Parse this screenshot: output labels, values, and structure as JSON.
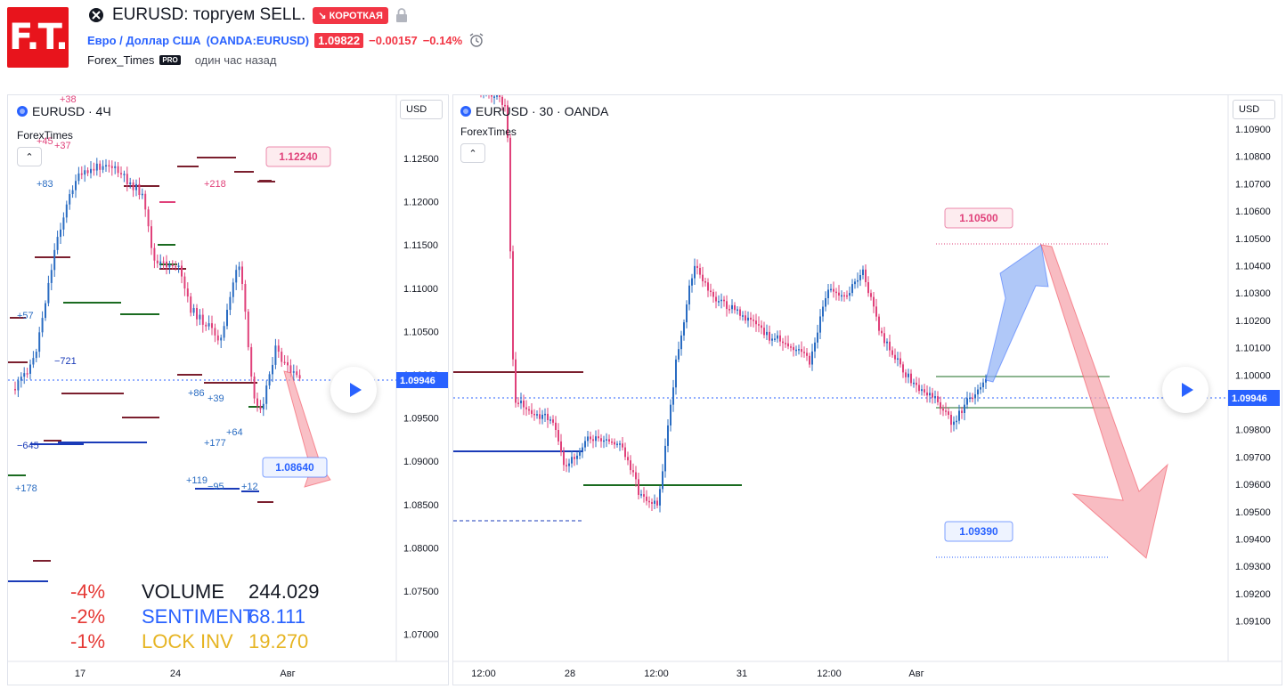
{
  "logo": {
    "text": "F.T."
  },
  "header": {
    "title": "EURUSD: торгуем SELL.",
    "direction_badge": "↘ КОРОТКАЯ",
    "instrument_name": "Евро / Доллар США",
    "instrument_symbol": "(OANDA:EURUSD)",
    "price": "1.09822",
    "change": "−0.00157",
    "change_pct": "−0.14%",
    "author": "Forex_Times",
    "author_badge": "PRO",
    "published": "один час назад"
  },
  "colors": {
    "bull": "#2a6cc2",
    "bear": "#e0417a",
    "accent_red": "#f23645",
    "accent_blue": "#2962ff"
  },
  "left_chart": {
    "symbol": "EURUSD · 4Ч",
    "author_label": "ForexTimes",
    "currency": "USD",
    "current_price": "1.09946",
    "price_axis": [
      "1.12500",
      "1.12000",
      "1.11500",
      "1.11000",
      "1.10500",
      "1.10000",
      "1.09500",
      "1.09000",
      "1.08500",
      "1.08000",
      "1.07500",
      "1.07000"
    ],
    "time_axis": [
      "17",
      "24",
      "Авг"
    ],
    "target_high": "1.12240",
    "target_low": "1.08640",
    "level_labels": [
      "+38",
      "+45",
      "+37",
      "+83",
      "+218",
      "+57",
      "−721",
      "+86",
      "+39",
      "+177",
      "+64",
      "−645",
      "+178",
      "+119",
      "−95",
      "+12"
    ],
    "stats": [
      {
        "pct": "-4%",
        "name": "VOLUME",
        "value": "244.029",
        "color": "#131722"
      },
      {
        "pct": "-2%",
        "name": "SENTIMENT",
        "value": "68.111",
        "color": "#2962ff"
      },
      {
        "pct": "-1%",
        "name": "LOCK INV",
        "value": "19.270",
        "color": "#e6b422"
      }
    ]
  },
  "right_chart": {
    "symbol": "EURUSD · 30 · OANDA",
    "author_label": "ForexTimes",
    "currency": "USD",
    "current_price": "1.09946",
    "price_axis": [
      "1.10900",
      "1.10800",
      "1.10700",
      "1.10600",
      "1.10500",
      "1.10400",
      "1.10300",
      "1.10200",
      "1.10100",
      "1.10000",
      "1.09900",
      "1.09800",
      "1.09700",
      "1.09600",
      "1.09500",
      "1.09400",
      "1.09300",
      "1.09200",
      "1.09100"
    ],
    "time_axis": [
      "12:00",
      "28",
      "12:00",
      "31",
      "12:00",
      "Авг"
    ],
    "target_high": "1.10500",
    "target_low": "1.09390"
  }
}
